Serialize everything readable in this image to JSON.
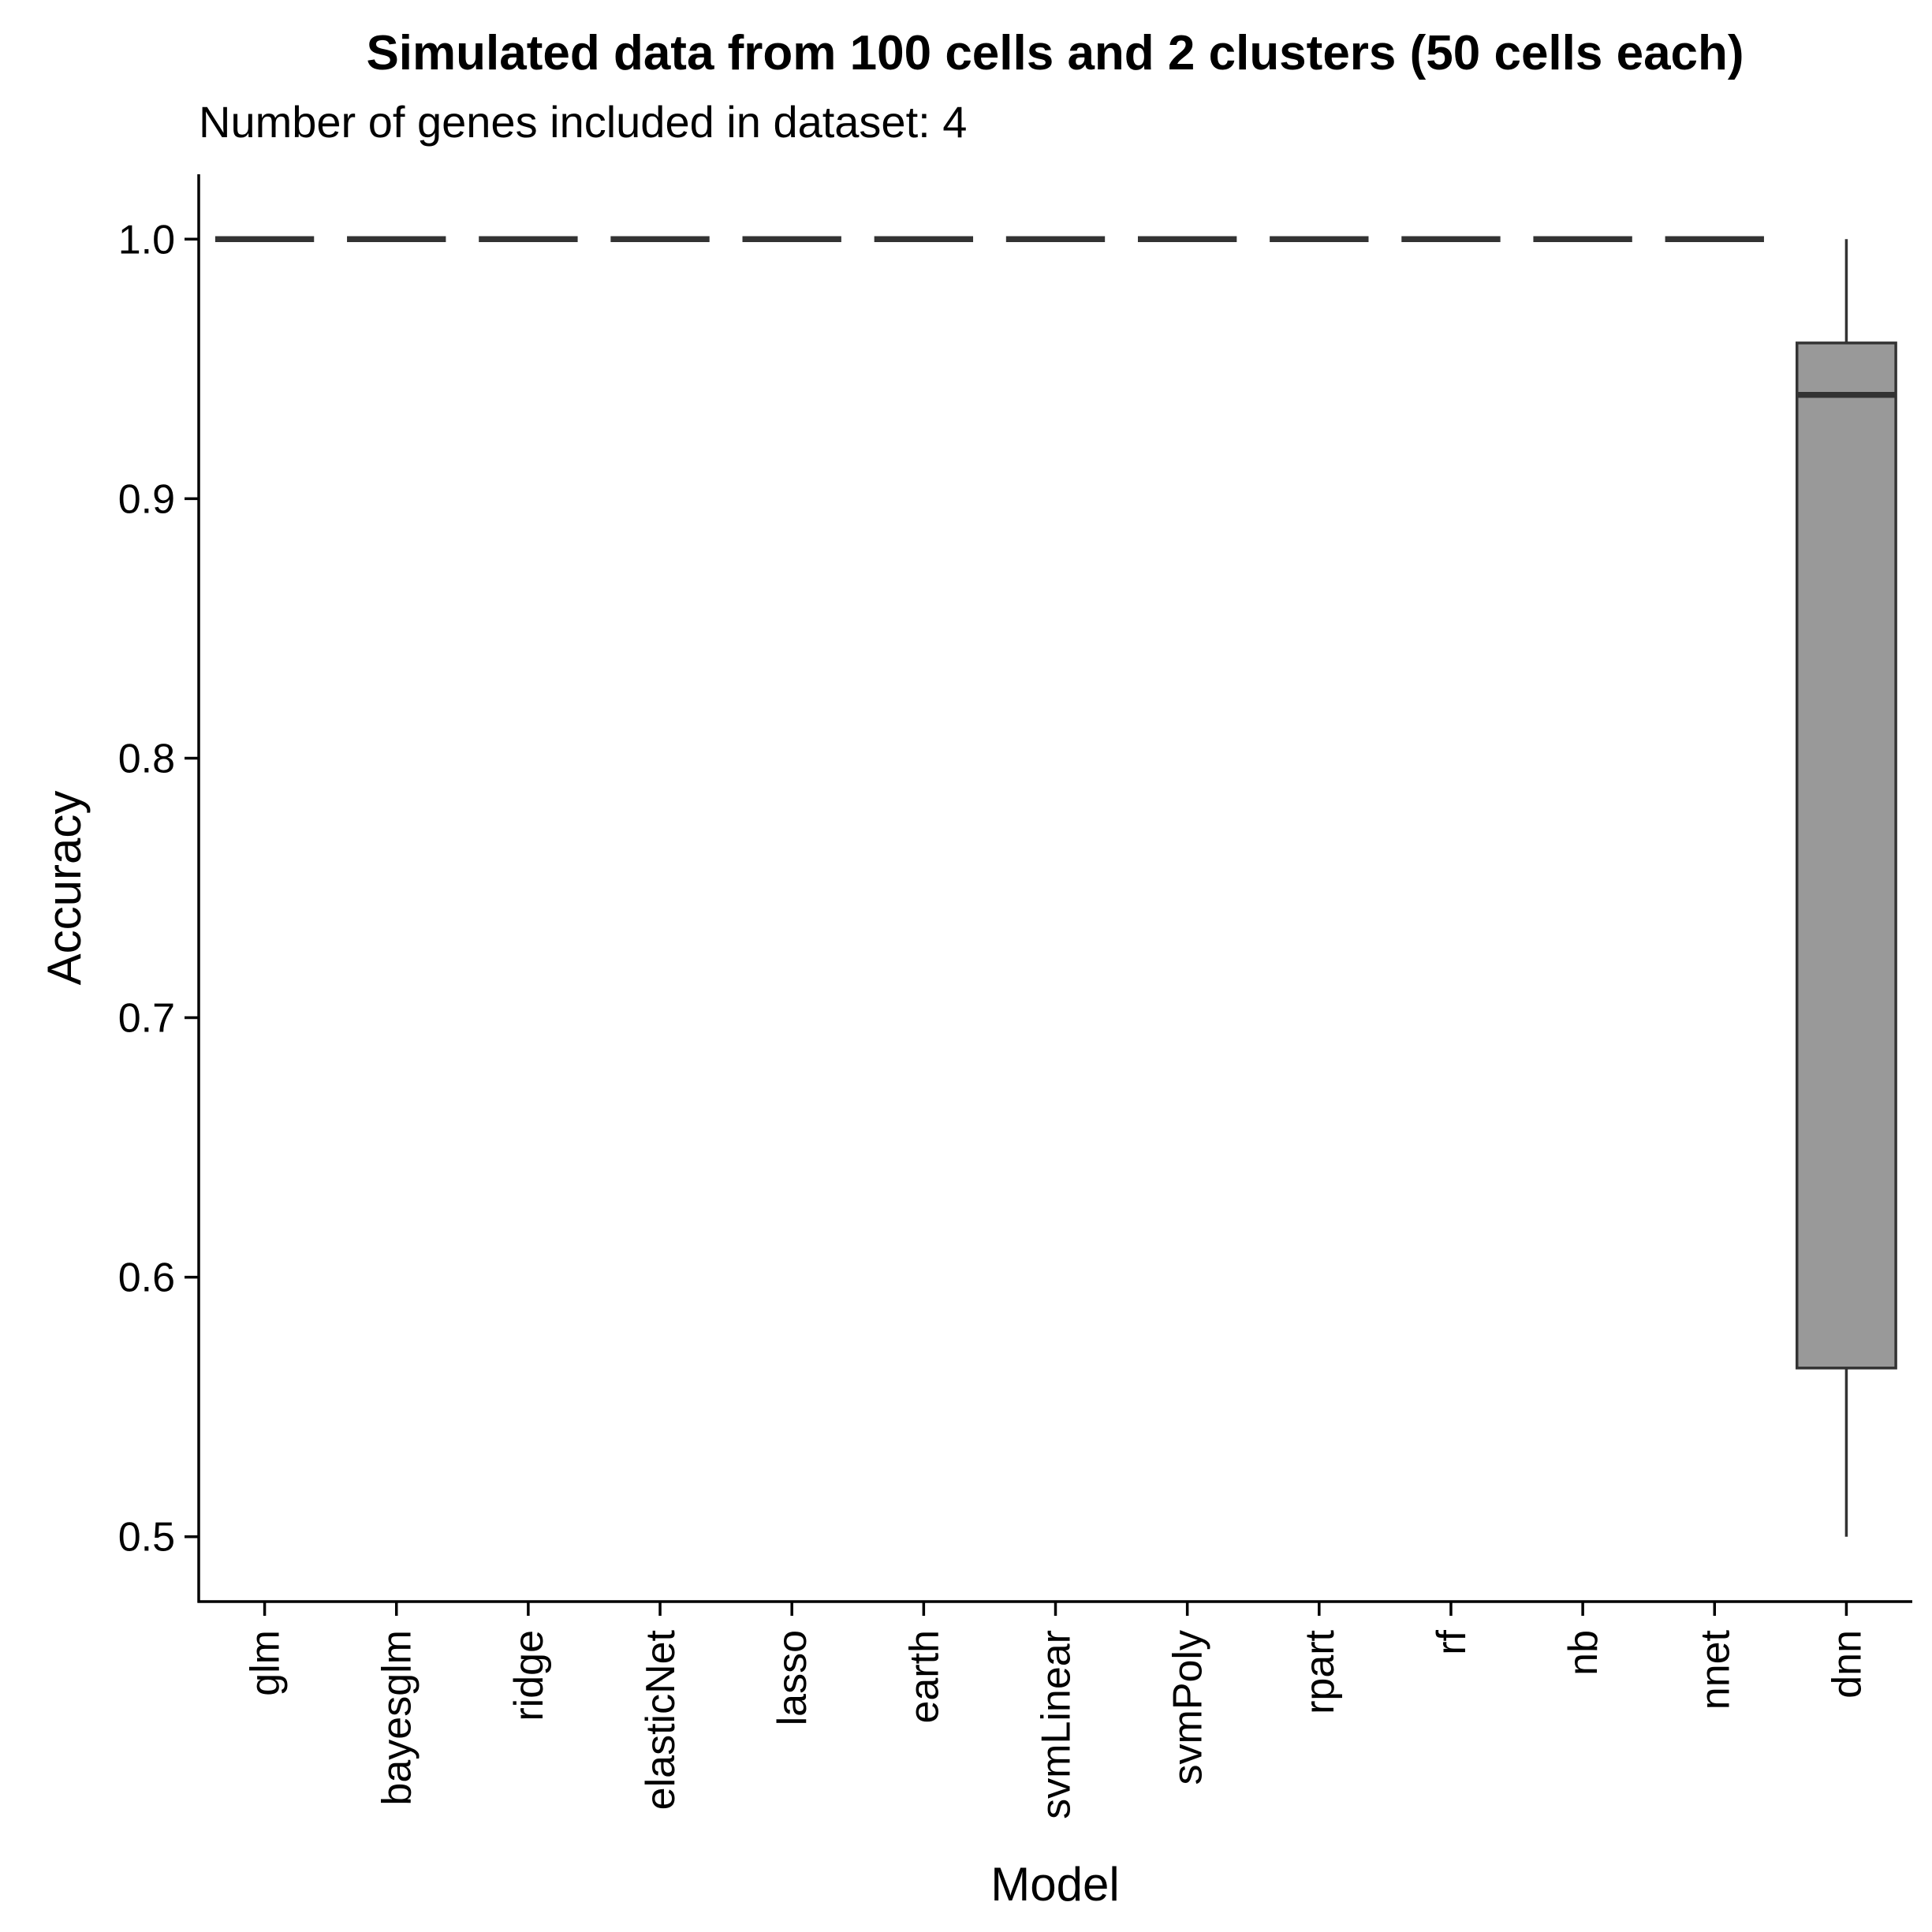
{
  "chart_data": {
    "type": "box",
    "title": "Simulated data from 100 cells and 2 clusters (50 cells each)",
    "subtitle": "Number of genes included in dataset: 4",
    "xlabel": "Model",
    "ylabel": "Accuracy",
    "ylim": [
      0.475,
      1.025
    ],
    "yticks": [
      {
        "value": 0.5,
        "label": "0.5"
      },
      {
        "value": 0.6,
        "label": "0.6"
      },
      {
        "value": 0.7,
        "label": "0.7"
      },
      {
        "value": 0.8,
        "label": "0.8"
      },
      {
        "value": 0.9,
        "label": "0.9"
      },
      {
        "value": 1.0,
        "label": "1.0"
      }
    ],
    "categories": [
      "glm",
      "bayesglm",
      "ridge",
      "elasticNet",
      "lasso",
      "earth",
      "svmLinear",
      "svmPoly",
      "rpart",
      "rf",
      "nb",
      "nnet",
      "dnn"
    ],
    "boxes": [
      {
        "category": "glm",
        "min": 1.0,
        "q1": 1.0,
        "median": 1.0,
        "q3": 1.0,
        "max": 1.0
      },
      {
        "category": "bayesglm",
        "min": 1.0,
        "q1": 1.0,
        "median": 1.0,
        "q3": 1.0,
        "max": 1.0
      },
      {
        "category": "ridge",
        "min": 1.0,
        "q1": 1.0,
        "median": 1.0,
        "q3": 1.0,
        "max": 1.0
      },
      {
        "category": "elasticNet",
        "min": 1.0,
        "q1": 1.0,
        "median": 1.0,
        "q3": 1.0,
        "max": 1.0
      },
      {
        "category": "lasso",
        "min": 1.0,
        "q1": 1.0,
        "median": 1.0,
        "q3": 1.0,
        "max": 1.0
      },
      {
        "category": "earth",
        "min": 1.0,
        "q1": 1.0,
        "median": 1.0,
        "q3": 1.0,
        "max": 1.0
      },
      {
        "category": "svmLinear",
        "min": 1.0,
        "q1": 1.0,
        "median": 1.0,
        "q3": 1.0,
        "max": 1.0
      },
      {
        "category": "svmPoly",
        "min": 1.0,
        "q1": 1.0,
        "median": 1.0,
        "q3": 1.0,
        "max": 1.0
      },
      {
        "category": "rpart",
        "min": 1.0,
        "q1": 1.0,
        "median": 1.0,
        "q3": 1.0,
        "max": 1.0
      },
      {
        "category": "rf",
        "min": 1.0,
        "q1": 1.0,
        "median": 1.0,
        "q3": 1.0,
        "max": 1.0
      },
      {
        "category": "nb",
        "min": 1.0,
        "q1": 1.0,
        "median": 1.0,
        "q3": 1.0,
        "max": 1.0
      },
      {
        "category": "nnet",
        "min": 1.0,
        "q1": 1.0,
        "median": 1.0,
        "q3": 1.0,
        "max": 1.0
      },
      {
        "category": "dnn",
        "min": 0.5,
        "q1": 0.565,
        "median": 0.94,
        "q3": 0.96,
        "max": 1.0
      }
    ],
    "grid": false,
    "legend": "none",
    "colors": {
      "box_fill": "#999999",
      "box_stroke": "#333333",
      "axis": "#000000"
    }
  }
}
